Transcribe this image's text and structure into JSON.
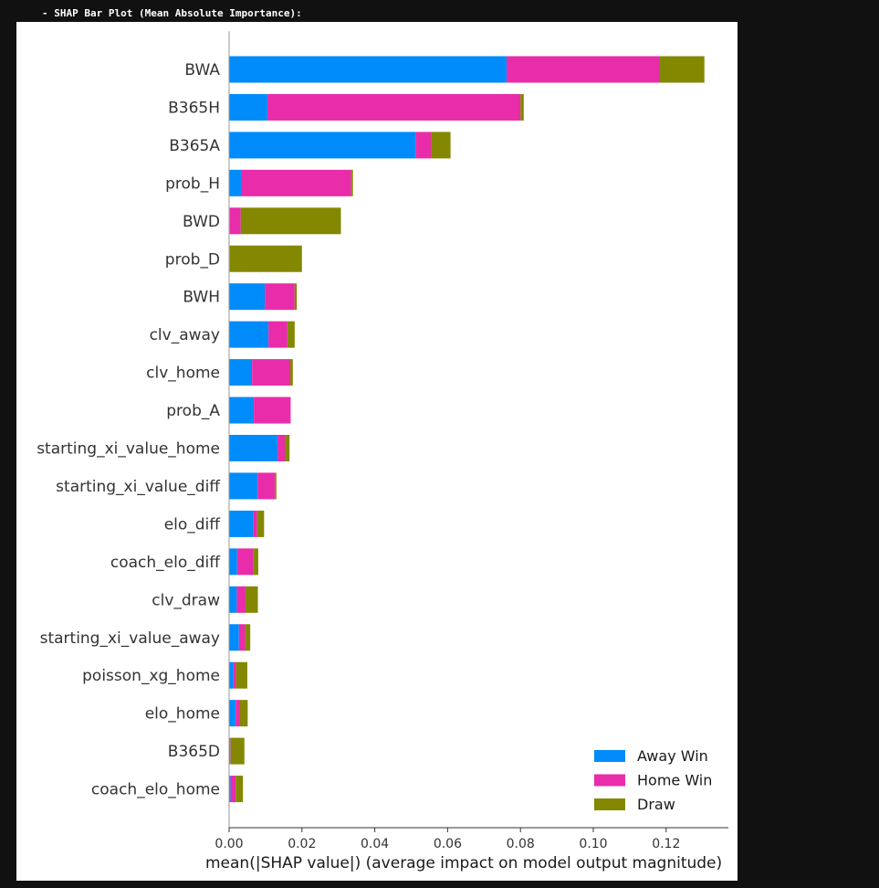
{
  "header": {
    "label": "- SHAP Bar Plot (Mean Absolute Importance):"
  },
  "chart_data": {
    "type": "bar",
    "orientation": "horizontal",
    "stacked": true,
    "xlabel": "mean(|SHAP value|) (average impact on model output magnitude)",
    "xlim": [
      0,
      0.137
    ],
    "x_ticks": [
      0.0,
      0.02,
      0.04,
      0.06,
      0.08,
      0.1,
      0.12
    ],
    "x_tick_labels": [
      "0.00",
      "0.02",
      "0.04",
      "0.06",
      "0.08",
      "0.10",
      "0.12"
    ],
    "grid": false,
    "legend_position": "bottom-right",
    "categories": [
      "BWA",
      "B365H",
      "B365A",
      "prob_H",
      "BWD",
      "prob_D",
      "BWH",
      "clv_away",
      "clv_home",
      "prob_A",
      "starting_xi_value_home",
      "starting_xi_value_diff",
      "elo_diff",
      "coach_elo_diff",
      "clv_draw",
      "starting_xi_value_away",
      "poisson_xg_home",
      "elo_home",
      "B365D",
      "coach_elo_home"
    ],
    "series": [
      {
        "name": "Away Win",
        "color": "#008bfb",
        "values": [
          0.0762,
          0.0105,
          0.0512,
          0.0035,
          0.0002,
          0.0001,
          0.0098,
          0.0108,
          0.0063,
          0.0068,
          0.0133,
          0.0078,
          0.0066,
          0.0022,
          0.0021,
          0.0027,
          0.0012,
          0.0018,
          0.0003,
          0.0004
        ]
      },
      {
        "name": "Home Win",
        "color": "#e82caa",
        "values": [
          0.0421,
          0.0695,
          0.0042,
          0.03,
          0.003,
          0.0001,
          0.0082,
          0.0052,
          0.0105,
          0.0101,
          0.002,
          0.0048,
          0.0011,
          0.0045,
          0.0024,
          0.0017,
          0.0007,
          0.0012,
          0.0001,
          0.0014
        ]
      },
      {
        "name": "Draw",
        "color": "#838800",
        "values": [
          0.0122,
          0.0009,
          0.0054,
          0.0005,
          0.0275,
          0.0198,
          0.0006,
          0.002,
          0.0007,
          0.0,
          0.0013,
          0.0004,
          0.0019,
          0.0013,
          0.0034,
          0.0014,
          0.0031,
          0.0021,
          0.0038,
          0.002
        ]
      }
    ]
  }
}
